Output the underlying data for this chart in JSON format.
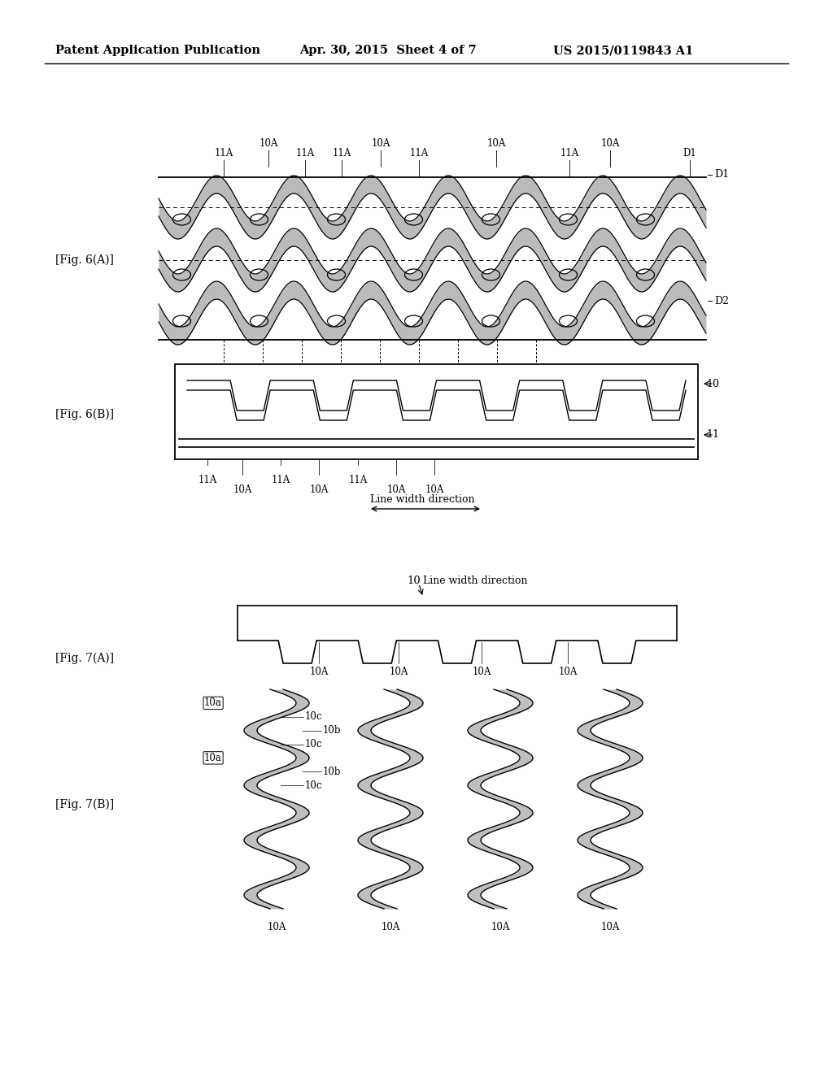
{
  "bg_color": "#ffffff",
  "header_left": "Patent Application Publication",
  "header_mid": "Apr. 30, 2015  Sheet 4 of 7",
  "header_right": "US 2015/0119843 A1",
  "fig6a_label": "[Fig. 6(A)]",
  "fig6b_label": "[Fig. 6(B)]",
  "fig7a_label": "[Fig. 7(A)]",
  "fig7b_label": "[Fig. 7(B)]",
  "label_10": "10",
  "label_11": "11",
  "label_10A": "10A",
  "label_11A": "11A",
  "label_D1": "D1",
  "label_D2": "D2",
  "label_10a": "10a",
  "label_10b": "10b",
  "label_10c": "10c",
  "label_line_width": "Line width direction",
  "gray_fill": "#b0b0b0",
  "gray_fill_alpha": 0.85
}
